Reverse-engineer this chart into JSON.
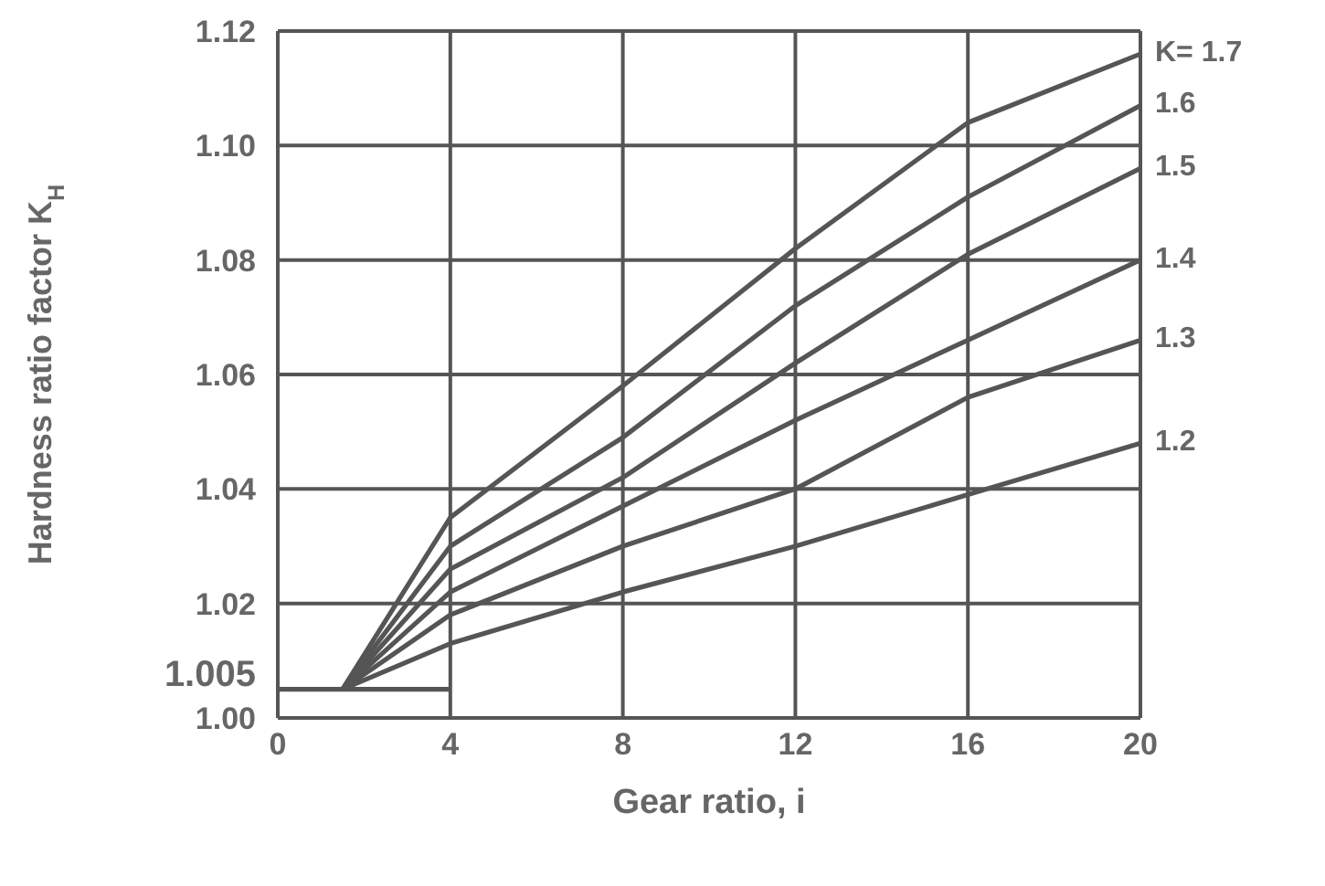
{
  "chart_data": {
    "type": "line",
    "xlabel": "Gear ratio, i",
    "ylabel": "Hardness ratio factor K$_{H}$",
    "xlim": [
      0,
      20
    ],
    "xticks": [
      0,
      4,
      8,
      12,
      16,
      20
    ],
    "ylim": [
      1.0,
      1.12
    ],
    "yticks": [
      {
        "value": 1.0,
        "label": "1.00"
      },
      {
        "value": 1.005,
        "label": "1.005"
      },
      1.02,
      1.04,
      1.06,
      1.08,
      {
        "value": 1.1,
        "label": "1.10"
      },
      1.12
    ],
    "grid": true,
    "legend": false,
    "marker": "none",
    "line_style": "solid",
    "series": [
      {
        "name": "K= 1.7",
        "color": "#555555",
        "x": [
          1.5,
          4,
          8,
          12,
          16,
          20
        ],
        "values": [
          1.005,
          1.035,
          1.058,
          1.082,
          1.104,
          1.116
        ]
      },
      {
        "name": "1.6",
        "color": "#555555",
        "x": [
          1.5,
          4,
          8,
          12,
          16,
          20
        ],
        "values": [
          1.005,
          1.03,
          1.049,
          1.072,
          1.091,
          1.107
        ]
      },
      {
        "name": "1.5",
        "color": "#555555",
        "x": [
          1.5,
          4,
          8,
          12,
          16,
          20
        ],
        "values": [
          1.005,
          1.026,
          1.042,
          1.062,
          1.081,
          1.096
        ]
      },
      {
        "name": "1.4",
        "color": "#555555",
        "x": [
          1.5,
          4,
          8,
          12,
          16,
          20
        ],
        "values": [
          1.005,
          1.022,
          1.037,
          1.052,
          1.066,
          1.08
        ]
      },
      {
        "name": "1.3",
        "color": "#555555",
        "x": [
          1.5,
          4,
          8,
          12,
          16,
          20
        ],
        "values": [
          1.005,
          1.018,
          1.03,
          1.04,
          1.056,
          1.066
        ]
      },
      {
        "name": "1.2",
        "color": "#555555",
        "x": [
          1.5,
          4,
          8,
          12,
          16,
          20
        ],
        "values": [
          1.005,
          1.013,
          1.022,
          1.03,
          1.039,
          1.048
        ]
      },
      {
        "color": "#555555",
        "x": [
          0,
          4
        ],
        "values": [
          1.005,
          1.005
        ]
      }
    ]
  }
}
